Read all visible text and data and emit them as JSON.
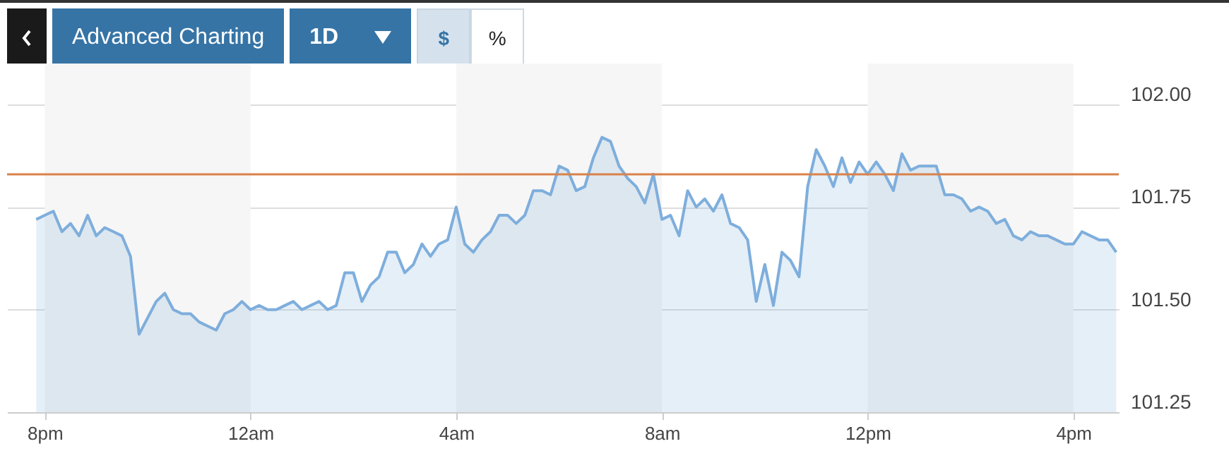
{
  "chart_data": {
    "type": "area",
    "annotations": [
      "Advanced Charting",
      "1D",
      "$",
      "%"
    ],
    "categories": [
      null,
      "8pm",
      null,
      null,
      null,
      null,
      null,
      null,
      null,
      null,
      null,
      null,
      null,
      null,
      null,
      null,
      null,
      null,
      null,
      null,
      null,
      null,
      null,
      null,
      null,
      "12am",
      null,
      null,
      null,
      null,
      null,
      null,
      null,
      null,
      null,
      null,
      null,
      null,
      null,
      null,
      null,
      null,
      null,
      null,
      null,
      null,
      null,
      null,
      null,
      "4am",
      null,
      null,
      null,
      null,
      null,
      null,
      null,
      null,
      null,
      null,
      null,
      null,
      null,
      null,
      null,
      null,
      null,
      null,
      null,
      null,
      null,
      null,
      null,
      "8am",
      null,
      null,
      null,
      null,
      null,
      null,
      null,
      null,
      null,
      null,
      null,
      null,
      null,
      null,
      null,
      null,
      null,
      null,
      null,
      null,
      null,
      null,
      null,
      "12pm",
      null,
      null,
      null,
      null,
      null,
      null,
      null,
      null,
      null,
      null,
      null,
      null,
      null,
      null,
      null,
      null,
      null,
      null,
      null,
      null,
      null,
      null,
      null,
      "4pm",
      null,
      null,
      null,
      null,
      null
    ],
    "series": [
      {
        "color": "#7eaedc",
        "values": [
          101.72,
          101.73,
          101.74,
          101.69,
          101.71,
          101.68,
          101.73,
          101.68,
          101.7,
          101.69,
          101.68,
          101.63,
          101.44,
          101.48,
          101.52,
          101.54,
          101.5,
          101.49,
          101.49,
          101.47,
          101.46,
          101.45,
          101.49,
          101.5,
          101.52,
          101.5,
          101.51,
          101.5,
          101.5,
          101.51,
          101.52,
          101.5,
          101.51,
          101.52,
          101.5,
          101.51,
          101.59,
          101.59,
          101.52,
          101.56,
          101.58,
          101.64,
          101.64,
          101.59,
          101.61,
          101.66,
          101.63,
          101.66,
          101.67,
          101.75,
          101.66,
          101.64,
          101.67,
          101.69,
          101.73,
          101.73,
          101.71,
          101.73,
          101.79,
          101.79,
          101.78,
          101.85,
          101.84,
          101.79,
          101.8,
          101.87,
          101.92,
          101.91,
          101.85,
          101.82,
          101.8,
          101.76,
          101.83,
          101.72,
          101.73,
          101.68,
          101.79,
          101.75,
          101.77,
          101.74,
          101.78,
          101.71,
          101.7,
          101.67,
          101.52,
          101.61,
          101.51,
          101.64,
          101.62,
          101.58,
          101.8,
          101.89,
          101.85,
          101.8,
          101.87,
          101.81,
          101.86,
          101.83,
          101.86,
          101.83,
          101.79,
          101.88,
          101.84,
          101.85,
          101.85,
          101.85,
          101.78,
          101.78,
          101.77,
          101.74,
          101.75,
          101.74,
          101.71,
          101.72,
          101.68,
          101.67,
          101.69,
          101.68,
          101.68,
          101.67,
          101.66,
          101.66,
          101.69,
          101.68,
          101.67,
          101.67,
          101.64
        ]
      }
    ],
    "ylim": [
      101.25,
      102.1
    ],
    "yticks": [
      {
        "value": 101.25,
        "label": "101.25"
      },
      {
        "value": 101.5,
        "label": "101.50"
      },
      {
        "value": 101.75,
        "label": "101.75"
      },
      {
        "value": 102,
        "label": "102.00"
      }
    ],
    "grid": "y",
    "ref_lines": [
      {
        "axis": "y",
        "value": 101.83,
        "color": "#d9824a"
      }
    ],
    "bands": [
      {
        "axis": "x",
        "from": "8pm",
        "to": "12am",
        "color": "#f6f6f6"
      },
      {
        "axis": "x",
        "from": "4am",
        "to": "8am",
        "color": "#f6f6f6"
      },
      {
        "axis": "x",
        "from": "12pm",
        "to": "4pm",
        "color": "#f6f6f6"
      }
    ]
  }
}
